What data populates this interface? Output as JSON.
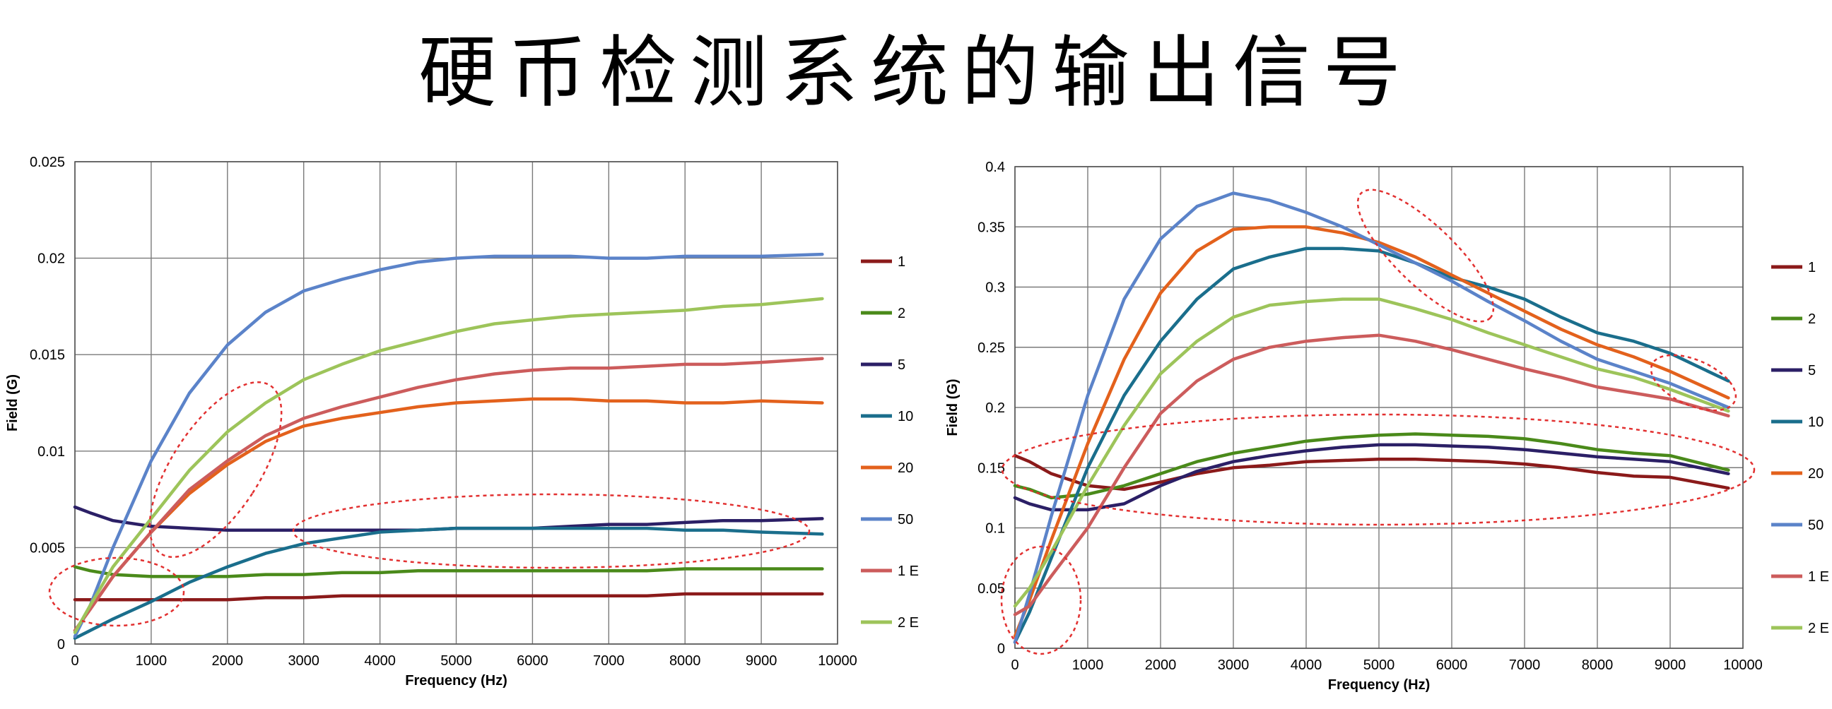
{
  "title": "硬币检测系统的输出信号",
  "chart_data": [
    {
      "type": "line",
      "title": "",
      "xlabel": "Frequency (Hz)",
      "ylabel": "Field (G)",
      "xlim": [
        0,
        10000
      ],
      "ylim": [
        0,
        0.025
      ],
      "xticks": [
        "0",
        "1000",
        "2000",
        "3000",
        "4000",
        "5000",
        "6000",
        "7000",
        "8000",
        "9000",
        "10000"
      ],
      "yticks": [
        "0",
        "0.005",
        "0.01",
        "0.015",
        "0.02",
        "0.025"
      ],
      "grid": true,
      "legend_position": "right",
      "x": [
        0,
        200,
        500,
        1000,
        1500,
        2000,
        2500,
        3000,
        3500,
        4000,
        4500,
        5000,
        5500,
        6000,
        6500,
        7000,
        7500,
        8000,
        8500,
        9000,
        9800
      ],
      "series": [
        {
          "name": "1",
          "color": "#8b1a1a",
          "values": [
            0.0023,
            0.0023,
            0.0023,
            0.0023,
            0.0023,
            0.0023,
            0.0024,
            0.0024,
            0.0025,
            0.0025,
            0.0025,
            0.0025,
            0.0025,
            0.0025,
            0.0025,
            0.0025,
            0.0025,
            0.0026,
            0.0026,
            0.0026,
            0.0026
          ]
        },
        {
          "name": "2",
          "color": "#4a8a1a",
          "values": [
            0.004,
            0.0038,
            0.0036,
            0.0035,
            0.0035,
            0.0035,
            0.0036,
            0.0036,
            0.0037,
            0.0037,
            0.0038,
            0.0038,
            0.0038,
            0.0038,
            0.0038,
            0.0038,
            0.0038,
            0.0039,
            0.0039,
            0.0039,
            0.0039
          ]
        },
        {
          "name": "5",
          "color": "#2b1f66",
          "values": [
            0.0071,
            0.0068,
            0.0064,
            0.0061,
            0.006,
            0.0059,
            0.0059,
            0.0059,
            0.0059,
            0.0059,
            0.0059,
            0.006,
            0.006,
            0.006,
            0.0061,
            0.0062,
            0.0062,
            0.0063,
            0.0064,
            0.0064,
            0.0065
          ]
        },
        {
          "name": "10",
          "color": "#1a6e8c",
          "values": [
            0.0003,
            0.0007,
            0.0013,
            0.0022,
            0.0032,
            0.004,
            0.0047,
            0.0052,
            0.0055,
            0.0058,
            0.0059,
            0.006,
            0.006,
            0.006,
            0.006,
            0.006,
            0.006,
            0.0059,
            0.0059,
            0.0058,
            0.0057
          ]
        },
        {
          "name": "20",
          "color": "#e3611c",
          "values": [
            0.0007,
            0.0018,
            0.0035,
            0.0058,
            0.0078,
            0.0093,
            0.0105,
            0.0113,
            0.0117,
            0.012,
            0.0123,
            0.0125,
            0.0126,
            0.0127,
            0.0127,
            0.0126,
            0.0126,
            0.0125,
            0.0125,
            0.0126,
            0.0125
          ]
        },
        {
          "name": "50",
          "color": "#5b83c9",
          "values": [
            0.0004,
            0.002,
            0.005,
            0.0095,
            0.013,
            0.0155,
            0.0172,
            0.0183,
            0.0189,
            0.0194,
            0.0198,
            0.02,
            0.0201,
            0.0201,
            0.0201,
            0.02,
            0.02,
            0.0201,
            0.0201,
            0.0201,
            0.0202
          ]
        },
        {
          "name": "1 E",
          "color": "#cc5c5c",
          "values": [
            0.0007,
            0.0018,
            0.0035,
            0.0058,
            0.008,
            0.0095,
            0.0108,
            0.0117,
            0.0123,
            0.0128,
            0.0133,
            0.0137,
            0.014,
            0.0142,
            0.0143,
            0.0143,
            0.0144,
            0.0145,
            0.0145,
            0.0146,
            0.0148
          ]
        },
        {
          "name": "2 E",
          "color": "#9dc45a",
          "values": [
            0.0006,
            0.002,
            0.004,
            0.0065,
            0.009,
            0.011,
            0.0125,
            0.0137,
            0.0145,
            0.0152,
            0.0157,
            0.0162,
            0.0166,
            0.0168,
            0.017,
            0.0171,
            0.0172,
            0.0173,
            0.0175,
            0.0176,
            0.0179
          ]
        }
      ]
    },
    {
      "type": "line",
      "title": "",
      "xlabel": "Frequency (Hz)",
      "ylabel": "Field (G)",
      "xlim": [
        0,
        10000
      ],
      "ylim": [
        0,
        0.4
      ],
      "xticks": [
        "0",
        "1000",
        "2000",
        "3000",
        "4000",
        "5000",
        "6000",
        "7000",
        "8000",
        "9000",
        "10000"
      ],
      "yticks": [
        "0",
        "0.05",
        "0.1",
        "0.15",
        "0.2",
        "0.25",
        "0.3",
        "0.35",
        "0.4"
      ],
      "grid": true,
      "legend_position": "right",
      "x": [
        0,
        200,
        500,
        1000,
        1500,
        2000,
        2500,
        3000,
        3500,
        4000,
        4500,
        5000,
        5500,
        6000,
        6500,
        7000,
        7500,
        8000,
        8500,
        9000,
        9800
      ],
      "series": [
        {
          "name": "1",
          "color": "#8b1a1a",
          "values": [
            0.16,
            0.155,
            0.145,
            0.135,
            0.132,
            0.138,
            0.145,
            0.15,
            0.152,
            0.155,
            0.156,
            0.157,
            0.157,
            0.156,
            0.155,
            0.153,
            0.15,
            0.146,
            0.143,
            0.142,
            0.133
          ]
        },
        {
          "name": "2",
          "color": "#4a8a1a",
          "values": [
            0.135,
            0.132,
            0.125,
            0.128,
            0.135,
            0.145,
            0.155,
            0.162,
            0.167,
            0.172,
            0.175,
            0.177,
            0.178,
            0.177,
            0.176,
            0.174,
            0.17,
            0.165,
            0.162,
            0.16,
            0.148
          ]
        },
        {
          "name": "5",
          "color": "#2b1f66",
          "values": [
            0.125,
            0.12,
            0.115,
            0.115,
            0.12,
            0.135,
            0.147,
            0.155,
            0.16,
            0.164,
            0.167,
            0.169,
            0.169,
            0.168,
            0.167,
            0.165,
            0.162,
            0.159,
            0.157,
            0.155,
            0.145
          ]
        },
        {
          "name": "10",
          "color": "#1a6e8c",
          "values": [
            0.005,
            0.03,
            0.075,
            0.15,
            0.21,
            0.255,
            0.29,
            0.315,
            0.325,
            0.332,
            0.332,
            0.33,
            0.32,
            0.308,
            0.3,
            0.29,
            0.275,
            0.262,
            0.255,
            0.245,
            0.222
          ]
        },
        {
          "name": "20",
          "color": "#e3611c",
          "values": [
            0.01,
            0.04,
            0.09,
            0.17,
            0.24,
            0.295,
            0.33,
            0.348,
            0.35,
            0.35,
            0.345,
            0.337,
            0.325,
            0.31,
            0.295,
            0.28,
            0.265,
            0.252,
            0.242,
            0.23,
            0.208
          ]
        },
        {
          "name": "50",
          "color": "#5b83c9",
          "values": [
            0.005,
            0.045,
            0.11,
            0.21,
            0.29,
            0.34,
            0.367,
            0.378,
            0.372,
            0.362,
            0.35,
            0.335,
            0.32,
            0.305,
            0.288,
            0.272,
            0.255,
            0.24,
            0.23,
            0.22,
            0.2
          ]
        },
        {
          "name": "1 E",
          "color": "#cc5c5c",
          "values": [
            0.028,
            0.035,
            0.06,
            0.1,
            0.15,
            0.195,
            0.222,
            0.24,
            0.25,
            0.255,
            0.258,
            0.26,
            0.255,
            0.248,
            0.24,
            0.232,
            0.225,
            0.217,
            0.212,
            0.207,
            0.193
          ]
        },
        {
          "name": "2 E",
          "color": "#9dc45a",
          "values": [
            0.035,
            0.05,
            0.08,
            0.135,
            0.185,
            0.228,
            0.255,
            0.275,
            0.285,
            0.288,
            0.29,
            0.29,
            0.282,
            0.273,
            0.262,
            0.252,
            0.242,
            0.232,
            0.225,
            0.215,
            0.197
          ]
        }
      ]
    }
  ]
}
